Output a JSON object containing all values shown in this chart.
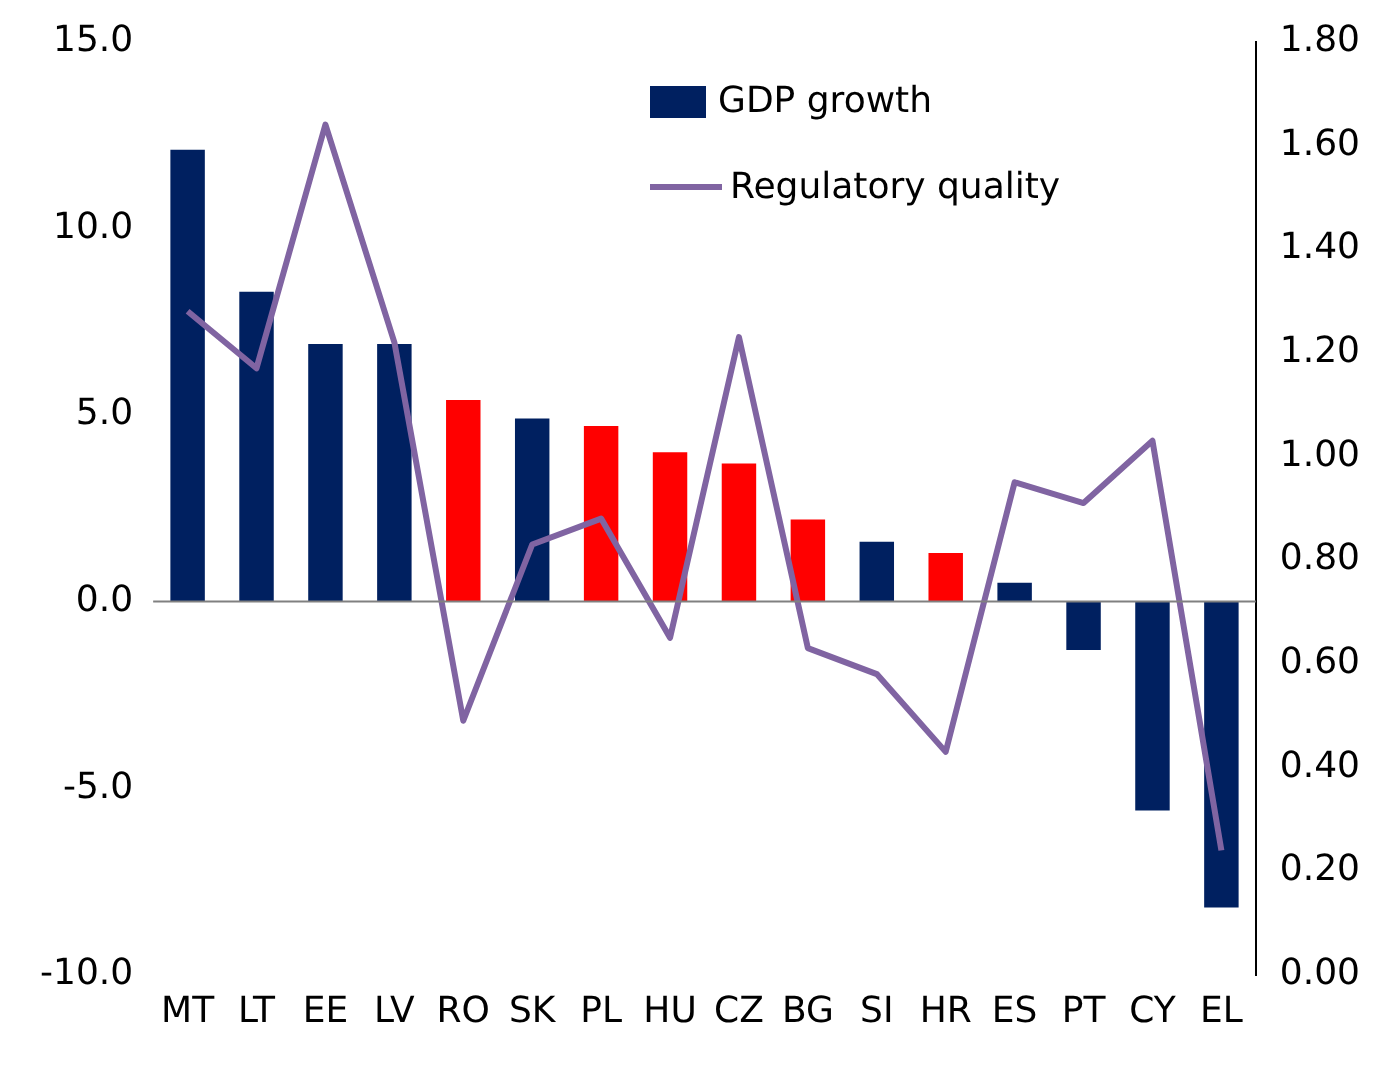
{
  "chart_data": {
    "type": "bar",
    "categories": [
      "MT",
      "LT",
      "EE",
      "LV",
      "RO",
      "SK",
      "PL",
      "HU",
      "CZ",
      "BG",
      "SI",
      "HR",
      "ES",
      "PT",
      "CY",
      "EL"
    ],
    "series": [
      {
        "name": "GDP growth",
        "color": "#002060",
        "colors": [
          "#002060",
          "#002060",
          "#002060",
          "#002060",
          "#ff0000",
          "#002060",
          "#ff0000",
          "#ff0000",
          "#ff0000",
          "#ff0000",
          "#002060",
          "#ff0000",
          "#002060",
          "#002060",
          "#002060",
          "#002060"
        ],
        "values": [
          12.1,
          8.3,
          6.9,
          6.9,
          5.4,
          4.9,
          4.7,
          4.0,
          3.7,
          2.2,
          1.6,
          1.3,
          0.5,
          -1.3,
          -5.6,
          -8.2
        ]
      },
      {
        "name": "Regulatory quality",
        "type": "line",
        "axis": "y2",
        "color": "#8064a2",
        "values": [
          1.28,
          1.17,
          1.64,
          1.22,
          0.49,
          0.83,
          0.88,
          0.65,
          1.23,
          0.63,
          0.58,
          0.43,
          0.95,
          0.91,
          1.03,
          0.24
        ]
      }
    ],
    "ylim": [
      -10,
      15
    ],
    "yticks": [
      {
        "value": -10,
        "label": "-10.0"
      },
      {
        "value": -5,
        "label": "-5.0"
      },
      {
        "value": 0,
        "label": "0.0"
      },
      {
        "value": 5,
        "label": "5.0"
      },
      {
        "value": 10,
        "label": "10.0"
      },
      {
        "value": 15,
        "label": "15.0"
      }
    ],
    "y2lim": [
      0,
      1.8
    ],
    "y2ticks": [
      {
        "value": 0,
        "label": "0.00"
      },
      {
        "value": 0.2,
        "label": "0.20"
      },
      {
        "value": 0.4,
        "label": "0.40"
      },
      {
        "value": 0.6,
        "label": "0.60"
      },
      {
        "value": 0.8,
        "label": "0.80"
      },
      {
        "value": 1,
        "label": "1.00"
      },
      {
        "value": 1.2,
        "label": "1.20"
      },
      {
        "value": 1.4,
        "label": "1.40"
      },
      {
        "value": 1.6,
        "label": "1.60"
      },
      {
        "value": 1.8,
        "label": "1.80"
      }
    ],
    "legend": "top right",
    "marker": "none"
  }
}
